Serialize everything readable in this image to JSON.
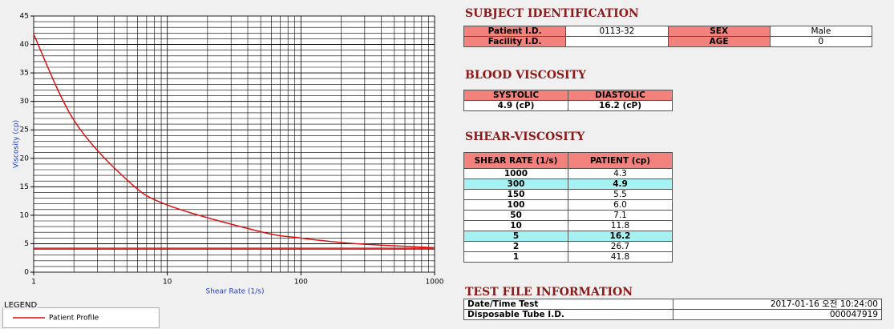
{
  "chart_data": {
    "type": "line",
    "x_label": "Shear Rate (1/s)",
    "y_label": "Viscosity (cp)",
    "xscale": "log",
    "xlim": [
      1,
      1000
    ],
    "xticks": [
      1,
      10,
      100,
      1000
    ],
    "ylim": [
      0,
      45
    ],
    "yticks": [
      0,
      5,
      10,
      15,
      20,
      25,
      30,
      35,
      40,
      45
    ],
    "grid": true,
    "series": [
      {
        "name": "Patient Profile",
        "color": "#e01010",
        "x": [
          1,
          2,
          5,
          10,
          50,
          100,
          150,
          300,
          1000
        ],
        "values": [
          41.8,
          26.7,
          16.2,
          11.8,
          7.1,
          6.0,
          5.5,
          4.9,
          4.3
        ]
      },
      {
        "color": "#d01010",
        "x": [
          1,
          1000
        ],
        "values": [
          4.2,
          4.2
        ]
      }
    ],
    "legend_title": "LEGEND"
  },
  "subject_identification": {
    "title": "SUBJECT IDENTIFICATION",
    "rows": [
      [
        "Patient I.D.",
        "0113-32",
        "SEX",
        "Male"
      ],
      [
        "Facility I.D.",
        null,
        "AGE",
        "0"
      ]
    ]
  },
  "blood_viscosity": {
    "title": "BLOOD VISCOSITY",
    "headers": [
      "SYSTOLIC",
      "DIASTOLIC"
    ],
    "row": [
      "4.9 (cP)",
      "16.2 (cP)"
    ]
  },
  "shear_viscosity": {
    "title": "SHEAR-VISCOSITY",
    "headers": [
      "SHEAR RATE (1/s)",
      "PATIENT (cp)"
    ],
    "rows": [
      [
        "1000",
        "4.3"
      ],
      [
        "300",
        "4.9"
      ],
      [
        "150",
        "5.5"
      ],
      [
        "100",
        "6.0"
      ],
      [
        "50",
        "7.1"
      ],
      [
        "10",
        "11.8"
      ],
      [
        "5",
        "16.2"
      ],
      [
        "2",
        "26.7"
      ],
      [
        "1",
        "41.8"
      ]
    ],
    "highlighted_rows": [
      1,
      6
    ]
  },
  "test_file_information": {
    "title": "TEST FILE INFORMATION",
    "rows": [
      [
        "Date/Time Test",
        "2017-01-16  오전 10:24:00"
      ],
      [
        "Disposable Tube I.D.",
        "000047919"
      ]
    ]
  }
}
